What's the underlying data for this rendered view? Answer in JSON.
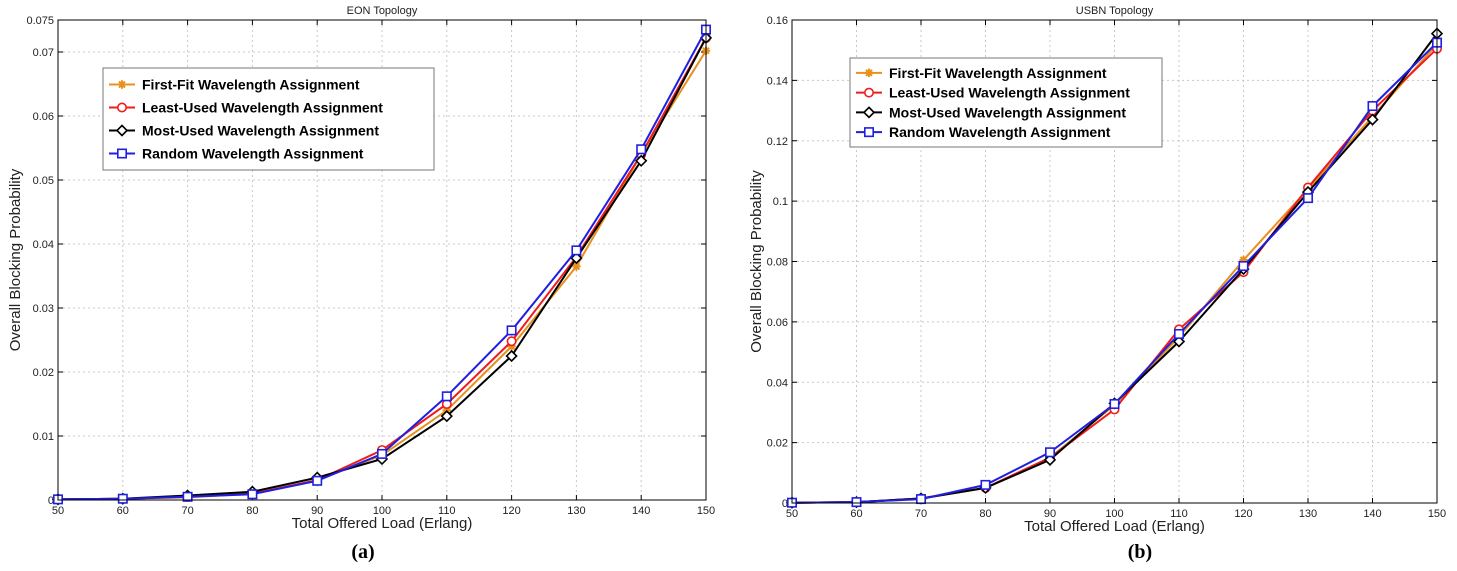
{
  "chart_data": [
    {
      "type": "line",
      "title": "EON Topology",
      "xlabel": "Total Offered Load (Erlang)",
      "ylabel": "Overall Blocking Probability",
      "caption": "(a)",
      "x": [
        50,
        60,
        70,
        80,
        90,
        100,
        110,
        120,
        130,
        140,
        150
      ],
      "xlim": [
        50,
        150
      ],
      "ylim": [
        0,
        0.075
      ],
      "yticks": [
        0,
        0.01,
        0.02,
        0.03,
        0.04,
        0.05,
        0.06,
        0.07,
        0.075
      ],
      "ytick_labels": [
        "0",
        "0.01",
        "0.02",
        "0.03",
        "0.04",
        "0.05",
        "0.06",
        "0.07",
        "0.075"
      ],
      "grid": true,
      "legend_position": "top-left",
      "series": [
        {
          "name": "First-Fit Wavelength Assignment",
          "color": "#e8901e",
          "marker": "asterisk",
          "values": [
            0.0001,
            0.0002,
            0.0004,
            0.001,
            0.0031,
            0.007,
            0.014,
            0.024,
            0.0365,
            0.054,
            0.0702
          ]
        },
        {
          "name": "Least-Used Wavelength Assignment",
          "color": "#ee1c1c",
          "marker": "circle",
          "values": [
            0.0001,
            0.0002,
            0.0005,
            0.001,
            0.0031,
            0.0078,
            0.015,
            0.0248,
            0.038,
            0.054,
            0.0722
          ]
        },
        {
          "name": "Most-Used Wavelength Assignment",
          "color": "#000000",
          "marker": "diamond",
          "values": [
            0.0001,
            0.0002,
            0.0007,
            0.0013,
            0.0035,
            0.0064,
            0.0131,
            0.0225,
            0.0378,
            0.053,
            0.0722
          ]
        },
        {
          "name": "Random Wavelength Assignment",
          "color": "#1f1fe0",
          "marker": "square",
          "values": [
            0.0001,
            0.0002,
            0.0005,
            0.0009,
            0.003,
            0.0072,
            0.0162,
            0.0265,
            0.039,
            0.0548,
            0.0735
          ]
        }
      ]
    },
    {
      "type": "line",
      "title": "USBN Topology",
      "xlabel": "Total Offered Load (Erlang)",
      "ylabel": "Overall Blocking Probability",
      "caption": "(b)",
      "x": [
        50,
        60,
        70,
        80,
        90,
        100,
        110,
        120,
        130,
        140,
        150
      ],
      "xlim": [
        50,
        150
      ],
      "ylim": [
        0,
        0.16
      ],
      "yticks": [
        0,
        0.02,
        0.04,
        0.06,
        0.08,
        0.1,
        0.12,
        0.14,
        0.16
      ],
      "ytick_labels": [
        "0",
        "0.02",
        "0.04",
        "0.06",
        "0.08",
        "0.1",
        "0.12",
        "0.14",
        "0.16"
      ],
      "grid": true,
      "legend_position": "top-left",
      "series": [
        {
          "name": "First-Fit Wavelength Assignment",
          "color": "#e8901e",
          "marker": "asterisk",
          "values": [
            0.0001,
            0.0003,
            0.0015,
            0.005,
            0.015,
            0.0325,
            0.055,
            0.0805,
            0.104,
            0.128,
            0.152
          ]
        },
        {
          "name": "Least-Used Wavelength Assignment",
          "color": "#ee1c1c",
          "marker": "circle",
          "values": [
            0.0001,
            0.0003,
            0.0015,
            0.005,
            0.015,
            0.031,
            0.0575,
            0.0765,
            0.1045,
            0.13,
            0.1505
          ]
        },
        {
          "name": "Most-Used Wavelength Assignment",
          "color": "#000000",
          "marker": "diamond",
          "values": [
            0.0001,
            0.0003,
            0.0015,
            0.005,
            0.0143,
            0.033,
            0.0535,
            0.0775,
            0.103,
            0.127,
            0.1555
          ]
        },
        {
          "name": "Random Wavelength Assignment",
          "color": "#1f1fe0",
          "marker": "square",
          "values": [
            0.0001,
            0.0003,
            0.0013,
            0.006,
            0.0168,
            0.0328,
            0.056,
            0.0785,
            0.101,
            0.1315,
            0.1525
          ]
        }
      ]
    }
  ]
}
